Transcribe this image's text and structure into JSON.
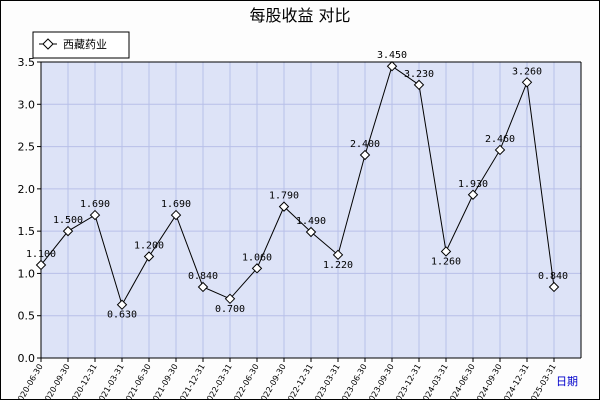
{
  "chart_data": {
    "type": "line",
    "title": "每股收益  对比",
    "xlabel": "日期",
    "ylabel": "",
    "ylim": [
      0,
      3.5
    ],
    "yticks": [
      "0.0",
      "0.5",
      "1.0",
      "1.5",
      "2.0",
      "2.5",
      "3.0",
      "3.5"
    ],
    "legend_position": "top-left",
    "grid": true,
    "colors": {
      "plot_bg": "#dde3f7",
      "grid": "#b8c0e8",
      "line": "#000000",
      "marker_fill": "#ffffff"
    },
    "categories": [
      "2020-06-30",
      "2020-09-30",
      "2020-12-31",
      "2021-03-31",
      "2021-06-30",
      "2021-09-30",
      "2021-12-31",
      "2022-03-31",
      "2022-06-30",
      "2022-09-30",
      "2022-12-31",
      "2023-03-31",
      "2023-06-30",
      "2023-09-30",
      "2023-12-31",
      "2024-03-31",
      "2024-06-30",
      "2024-09-30",
      "2024-12-31",
      "2025-03-31"
    ],
    "series": [
      {
        "name": "西藏药业",
        "values": [
          1.1,
          1.5,
          1.69,
          0.63,
          1.2,
          1.69,
          0.84,
          0.7,
          1.06,
          1.79,
          1.49,
          1.22,
          2.4,
          3.45,
          3.23,
          1.26,
          1.93,
          2.46,
          3.26,
          0.84
        ],
        "labels": [
          "1.100",
          "1.500",
          "1.690",
          "0.630",
          "1.200",
          "1.690",
          "0.840",
          "0.700",
          "1.060",
          "1.790",
          "1.490",
          "1.220",
          "2.400",
          "3.450",
          "3.230",
          "1.260",
          "1.930",
          "2.460",
          "3.260",
          "0.840"
        ]
      }
    ]
  }
}
